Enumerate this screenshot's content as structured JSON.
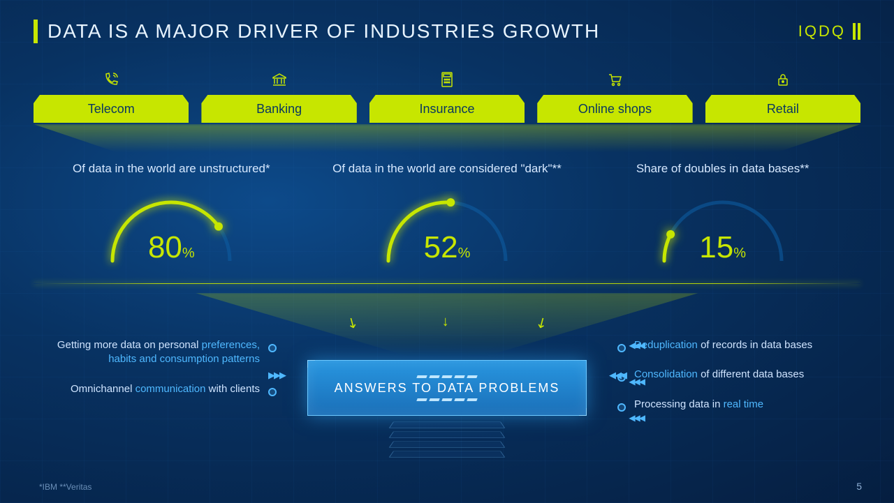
{
  "colors": {
    "accent": "#c7e600",
    "bg_inner": "#0d4a8a",
    "bg_outer": "#051e40",
    "text": "#ffffff",
    "text_soft": "#d6e8ff",
    "blue_box": "#2896e0",
    "blue_highlight": "#4fb8ff",
    "footnote": "#6a8fb8"
  },
  "header": {
    "title": "DATA IS A MAJOR DRIVER OF INDUSTRIES GROWTH",
    "brand": "IQDQ"
  },
  "industries": [
    {
      "label": "Telecom",
      "icon": "phone"
    },
    {
      "label": "Banking",
      "icon": "bank"
    },
    {
      "label": "Insurance",
      "icon": "calculator"
    },
    {
      "label": "Online shops",
      "icon": "cart"
    },
    {
      "label": "Retail",
      "icon": "lock"
    }
  ],
  "stats": [
    {
      "label": "Of data in the world are unstructured*",
      "value": 80,
      "unit": "%",
      "gauge_pct": 80
    },
    {
      "label": "Of data in the world are considered \"dark\"**",
      "value": 52,
      "unit": "%",
      "gauge_pct": 52
    },
    {
      "label": "Share of doubles in data bases**",
      "value": 15,
      "unit": "%",
      "gauge_pct": 15
    }
  ],
  "gauge_style": {
    "radius": 84,
    "stroke_width": 5,
    "track_color": "#0d5ba0",
    "fill_color": "#c7e600",
    "knob_radius": 6
  },
  "center_box": {
    "label": "ANSWERS TO DATA PROBLEMS"
  },
  "left_items": [
    {
      "plain_lead": "Getting more data on personal ",
      "highlight": "preferences, habits and consumption patterns",
      "plain_tail": ""
    },
    {
      "plain_lead": "Omnichannel ",
      "highlight": "communication",
      "plain_tail": " with clients"
    }
  ],
  "right_items": [
    {
      "highlight": "Deduplication",
      "plain_tail": " of records in data bases"
    },
    {
      "highlight": "Consolidation",
      "plain_tail": " of different data bases"
    },
    {
      "plain_lead": "Processing data in ",
      "highlight": "real time",
      "plain_tail": ""
    }
  ],
  "footnote": "*IBM   **Veritas",
  "page_number": "5"
}
